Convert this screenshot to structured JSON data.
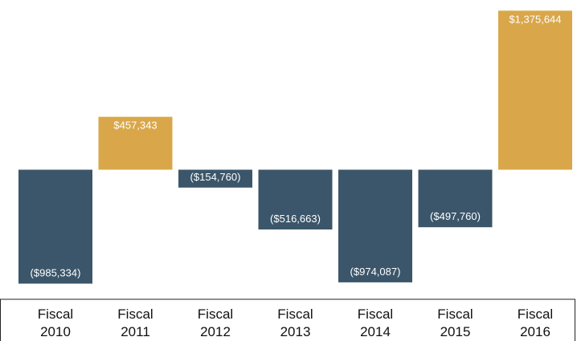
{
  "chart_data": {
    "type": "bar",
    "title": "",
    "xlabel": "",
    "ylabel": "",
    "ylim": [
      -1050000,
      1400000
    ],
    "grid": false,
    "legend": "none",
    "categories": [
      [
        "Fiscal",
        "2010"
      ],
      [
        "Fiscal",
        "2011"
      ],
      [
        "Fiscal",
        "2012"
      ],
      [
        "Fiscal",
        "2013"
      ],
      [
        "Fiscal",
        "2014"
      ],
      [
        "Fiscal",
        "2015"
      ],
      [
        "Fiscal",
        "2016"
      ]
    ],
    "values": [
      -985334,
      457343,
      -154760,
      -516663,
      -974087,
      -497760,
      1375644
    ],
    "data_labels": [
      "($985,334)",
      "$457,343",
      "($154,760)",
      "($516,663)",
      "($974,087)",
      "($497,760)",
      "$1,375,644"
    ],
    "colors": {
      "positive": "#D9A74A",
      "negative": "#3B566A",
      "axis": "#222222"
    }
  }
}
